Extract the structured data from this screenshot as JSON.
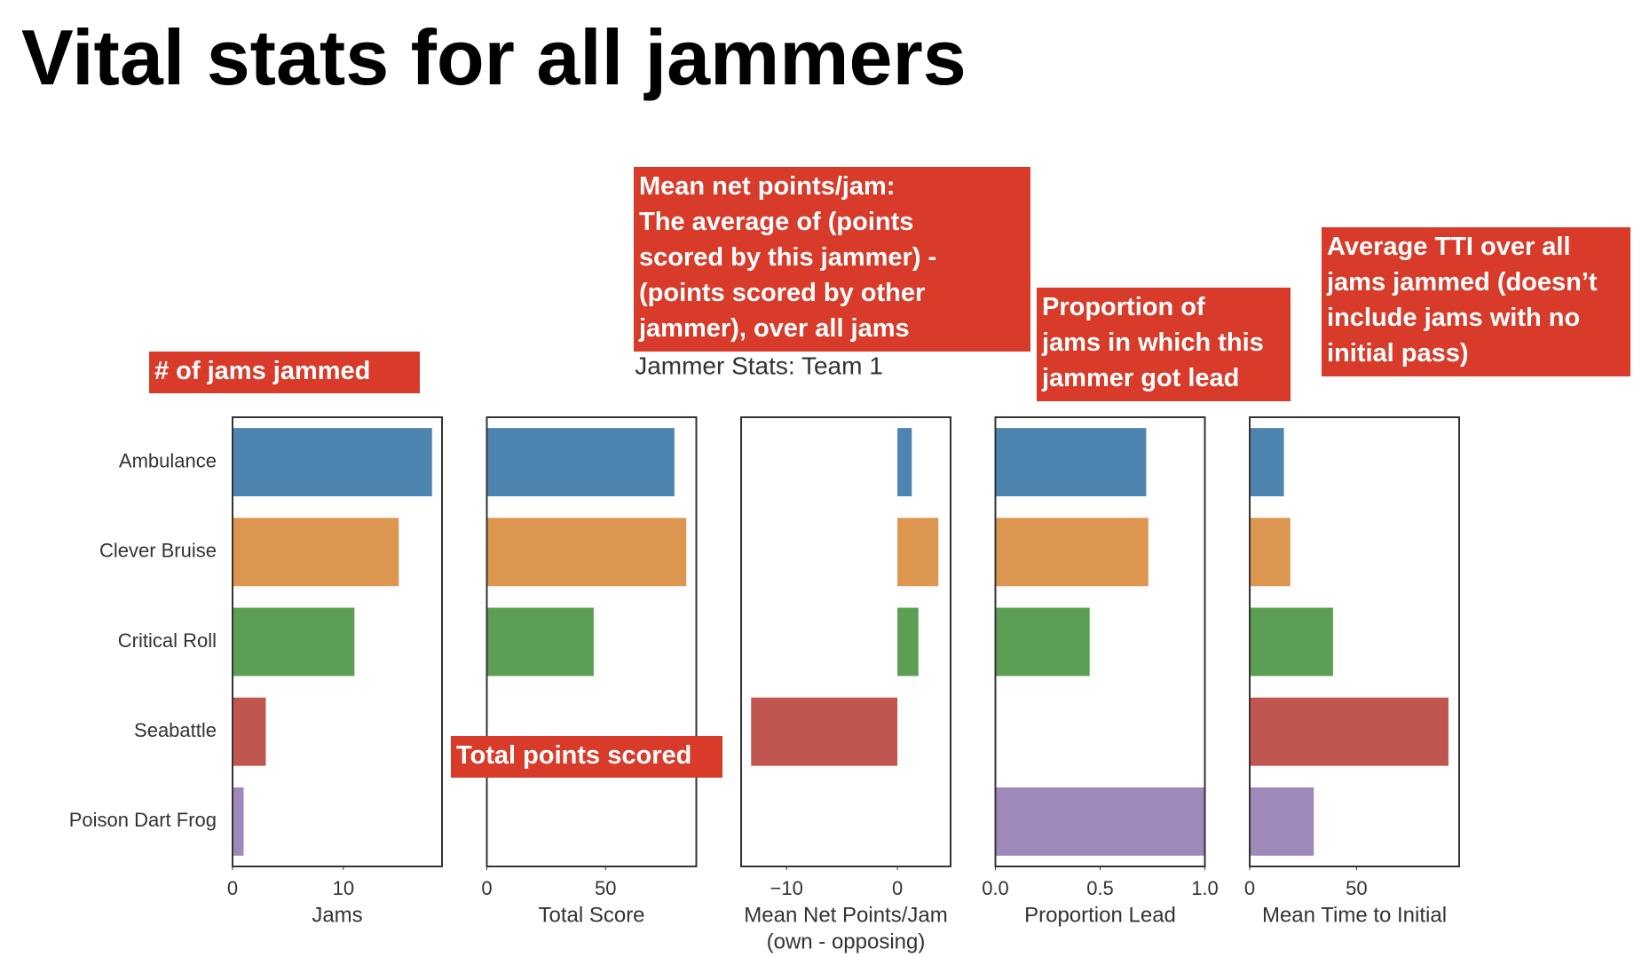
{
  "slide_title": "Vital stats for all jammers",
  "suptitle": "Jammer Stats: Team 1",
  "annotations": [
    {
      "lines": [
        "# of jams jammed"
      ]
    },
    {
      "lines": [
        "Total points scored"
      ]
    },
    {
      "lines": [
        "Mean net points/jam:",
        "The average of (points",
        "scored by this jammer) -",
        "(points scored by other",
        "jammer), over all jams"
      ]
    },
    {
      "lines": [
        "Proportion of",
        "jams in which this",
        "jammer got lead"
      ]
    },
    {
      "lines": [
        "Average TTI over all",
        "jams jammed (doesn’t",
        "include jams with no",
        "initial pass)"
      ]
    }
  ],
  "chart_data": [
    {
      "type": "barh",
      "categories": [
        "Ambulance",
        "Clever Bruise",
        "Critical Roll",
        "Seabattle",
        "Poison Dart Frog"
      ],
      "colors": [
        "#4e84b0",
        "#dd9650",
        "#5c9e54",
        "#c0564f",
        "#9f89bb"
      ],
      "values": [
        18,
        15,
        11,
        3,
        1
      ],
      "xlim": [
        0,
        18.9
      ],
      "xticks": [
        0,
        10
      ],
      "xlabel": [
        "Jams"
      ]
    },
    {
      "type": "barh",
      "values": [
        79,
        84,
        45,
        0,
        0
      ],
      "xlim": [
        0,
        88.2
      ],
      "xticks": [
        0,
        50
      ],
      "xlabel": [
        "Total Score"
      ]
    },
    {
      "type": "barh",
      "values": [
        1.3,
        3.7,
        1.9,
        -13.2,
        0
      ],
      "xlim": [
        -14.1,
        4.8
      ],
      "xticks": [
        {
          "value": -10,
          "label": "−10"
        },
        0
      ],
      "xlabel": [
        "Mean Net Points/Jam",
        "(own - opposing)"
      ]
    },
    {
      "type": "barh",
      "values": [
        0.72,
        0.73,
        0.45,
        0,
        1.0
      ],
      "xlim": [
        0,
        1.0
      ],
      "xticks": [
        {
          "value": 0,
          "label": "0.0"
        },
        {
          "value": 0.5,
          "label": "0.5"
        },
        {
          "value": 1.0,
          "label": "1.0"
        }
      ],
      "xlabel": [
        "Proportion Lead"
      ]
    },
    {
      "type": "barh",
      "values": [
        16,
        19,
        39,
        93,
        30
      ],
      "xlim": [
        0,
        98
      ],
      "xticks": [
        0,
        50
      ],
      "xlabel": [
        "Mean Time to Initial"
      ]
    }
  ]
}
